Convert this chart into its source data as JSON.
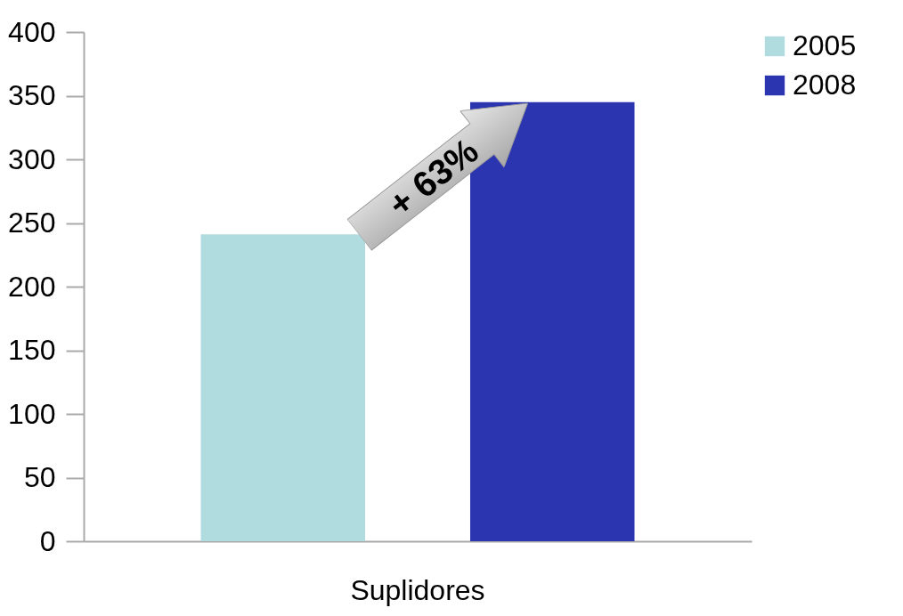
{
  "chart_data": {
    "type": "bar",
    "categories": [
      "Suplidores"
    ],
    "series": [
      {
        "name": "2005",
        "color": "#b0dce0",
        "values": [
          241
        ]
      },
      {
        "name": "2008",
        "color": "#2b35b0",
        "values": [
          345
        ]
      }
    ],
    "ylim": [
      0,
      400
    ],
    "yticks": [
      0,
      50,
      100,
      150,
      200,
      250,
      300,
      350,
      400
    ],
    "legend": "right",
    "annotations": [
      "+ 63%"
    ]
  }
}
